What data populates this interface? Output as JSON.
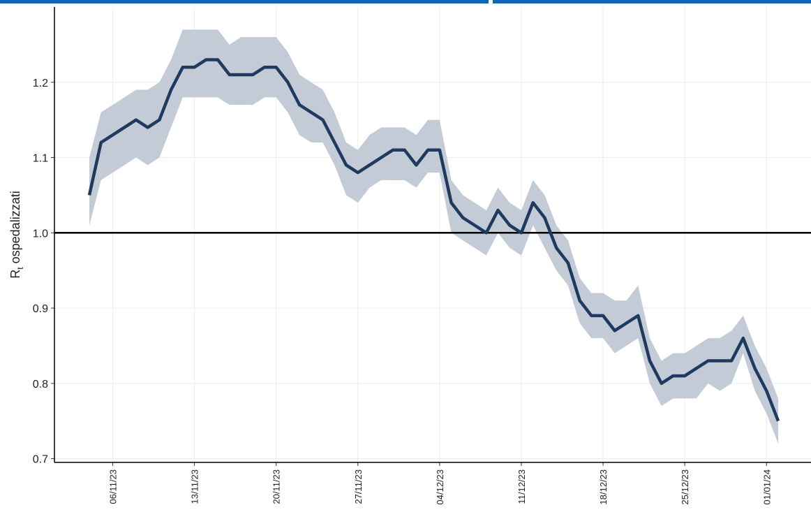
{
  "chart_data": {
    "type": "line",
    "ylabel_parts": [
      "R",
      "t",
      "ospedalizzati"
    ],
    "x": [
      "04/11/23",
      "05/11/23",
      "06/11/23",
      "07/11/23",
      "08/11/23",
      "09/11/23",
      "10/11/23",
      "11/11/23",
      "12/11/23",
      "13/11/23",
      "14/11/23",
      "15/11/23",
      "16/11/23",
      "17/11/23",
      "18/11/23",
      "19/11/23",
      "20/11/23",
      "21/11/23",
      "22/11/23",
      "23/11/23",
      "24/11/23",
      "25/11/23",
      "26/11/23",
      "27/11/23",
      "28/11/23",
      "29/11/23",
      "30/11/23",
      "01/12/23",
      "02/12/23",
      "03/12/23",
      "04/12/23",
      "05/12/23",
      "06/12/23",
      "07/12/23",
      "08/12/23",
      "09/12/23",
      "10/12/23",
      "11/12/23",
      "12/12/23",
      "13/12/23",
      "14/12/23",
      "15/12/23",
      "16/12/23",
      "17/12/23",
      "18/12/23",
      "19/12/23",
      "20/12/23",
      "21/12/23",
      "22/12/23",
      "23/12/23",
      "24/12/23",
      "25/12/23",
      "26/12/23",
      "27/12/23",
      "28/12/23",
      "29/12/23",
      "30/12/23",
      "31/12/23",
      "01/01/24",
      "02/01/24"
    ],
    "values": [
      1.05,
      1.12,
      1.13,
      1.14,
      1.15,
      1.14,
      1.15,
      1.19,
      1.22,
      1.22,
      1.23,
      1.23,
      1.21,
      1.21,
      1.21,
      1.22,
      1.22,
      1.2,
      1.17,
      1.16,
      1.15,
      1.12,
      1.09,
      1.08,
      1.09,
      1.1,
      1.11,
      1.11,
      1.09,
      1.11,
      1.11,
      1.04,
      1.02,
      1.01,
      1.0,
      1.03,
      1.01,
      1.0,
      1.04,
      1.02,
      0.98,
      0.96,
      0.91,
      0.89,
      0.89,
      0.87,
      0.88,
      0.89,
      0.83,
      0.8,
      0.81,
      0.81,
      0.82,
      0.83,
      0.83,
      0.83,
      0.86,
      0.82,
      0.79,
      0.75
    ],
    "upper": [
      1.1,
      1.16,
      1.17,
      1.18,
      1.19,
      1.19,
      1.2,
      1.23,
      1.27,
      1.27,
      1.27,
      1.27,
      1.25,
      1.26,
      1.26,
      1.26,
      1.26,
      1.24,
      1.21,
      1.2,
      1.19,
      1.16,
      1.12,
      1.11,
      1.13,
      1.14,
      1.14,
      1.14,
      1.13,
      1.15,
      1.15,
      1.07,
      1.05,
      1.04,
      1.03,
      1.06,
      1.04,
      1.03,
      1.07,
      1.05,
      1.01,
      0.99,
      0.94,
      0.92,
      0.92,
      0.91,
      0.91,
      0.93,
      0.86,
      0.83,
      0.84,
      0.84,
      0.85,
      0.86,
      0.86,
      0.87,
      0.89,
      0.85,
      0.82,
      0.78
    ],
    "lower": [
      1.01,
      1.07,
      1.08,
      1.09,
      1.1,
      1.09,
      1.1,
      1.14,
      1.18,
      1.18,
      1.18,
      1.18,
      1.17,
      1.17,
      1.17,
      1.18,
      1.18,
      1.16,
      1.13,
      1.12,
      1.12,
      1.09,
      1.05,
      1.04,
      1.06,
      1.07,
      1.07,
      1.07,
      1.06,
      1.08,
      1.08,
      1.0,
      0.99,
      0.98,
      0.97,
      1.0,
      0.98,
      0.97,
      1.01,
      0.98,
      0.95,
      0.93,
      0.88,
      0.86,
      0.86,
      0.84,
      0.85,
      0.86,
      0.8,
      0.77,
      0.78,
      0.78,
      0.78,
      0.8,
      0.79,
      0.8,
      0.84,
      0.79,
      0.76,
      0.72
    ],
    "color": "#1f3a5f",
    "band_color": "#c3cbd7",
    "hline": 1.0,
    "ylim": [
      0.695,
      1.3
    ],
    "yticks": [
      0.7,
      0.8,
      0.9,
      {
        "value": 1.0,
        "label": "1.0"
      },
      1.1,
      1.2
    ],
    "xticks": [
      "06/11/23",
      "13/11/23",
      "20/11/23",
      "27/11/23",
      "04/12/23",
      "11/12/23",
      "18/12/23",
      "25/12/23",
      "01/01/24"
    ],
    "grid": true
  }
}
